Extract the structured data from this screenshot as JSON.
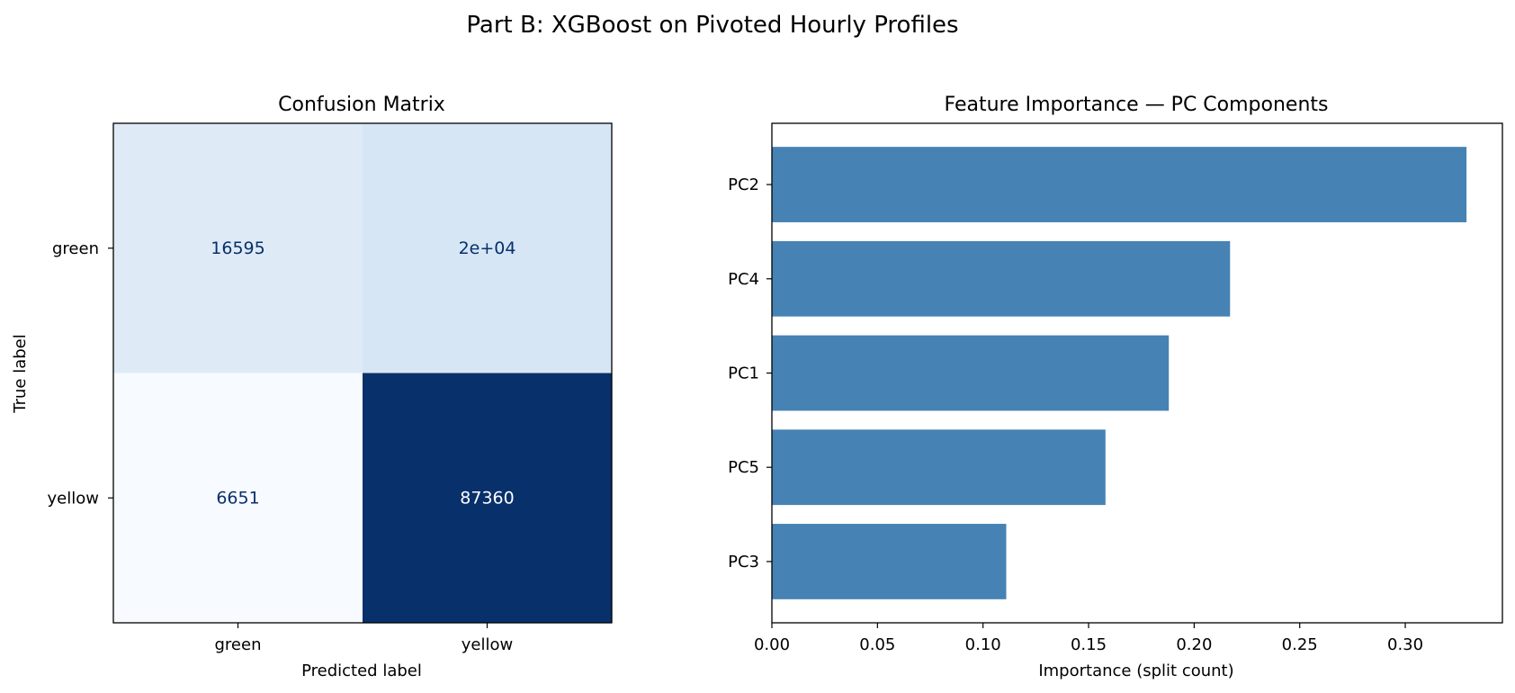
{
  "suptitle": "Part B: XGBoost on Pivoted Hourly Profiles",
  "chart_data": [
    {
      "type": "heatmap",
      "title": "Confusion Matrix",
      "xlabel": "Predicted label",
      "ylabel": "True label",
      "x_categories": [
        "green",
        "yellow"
      ],
      "y_categories": [
        "green",
        "yellow"
      ],
      "values": [
        [
          16595,
          20000
        ],
        [
          6651,
          87360
        ]
      ],
      "cell_labels": [
        [
          "16595",
          "2e+04"
        ],
        [
          "6651",
          "87360"
        ]
      ],
      "colormap": "Blues",
      "text_colors": {
        "dark": "#08306b",
        "light": "#ffffff"
      }
    },
    {
      "type": "bar",
      "orientation": "horizontal",
      "title": "Feature Importance — PC Components",
      "xlabel": "Importance (split count)",
      "ylabel": "",
      "categories": [
        "PC2",
        "PC4",
        "PC1",
        "PC5",
        "PC3"
      ],
      "values": [
        0.329,
        0.217,
        0.188,
        0.158,
        0.111
      ],
      "xlim": [
        0,
        0.346
      ],
      "xticks": [
        0.0,
        0.05,
        0.1,
        0.15,
        0.2,
        0.25,
        0.3
      ],
      "xtick_labels": [
        "0.00",
        "0.05",
        "0.10",
        "0.15",
        "0.20",
        "0.25",
        "0.30"
      ],
      "bar_color": "#4682b4",
      "grid": false
    }
  ]
}
